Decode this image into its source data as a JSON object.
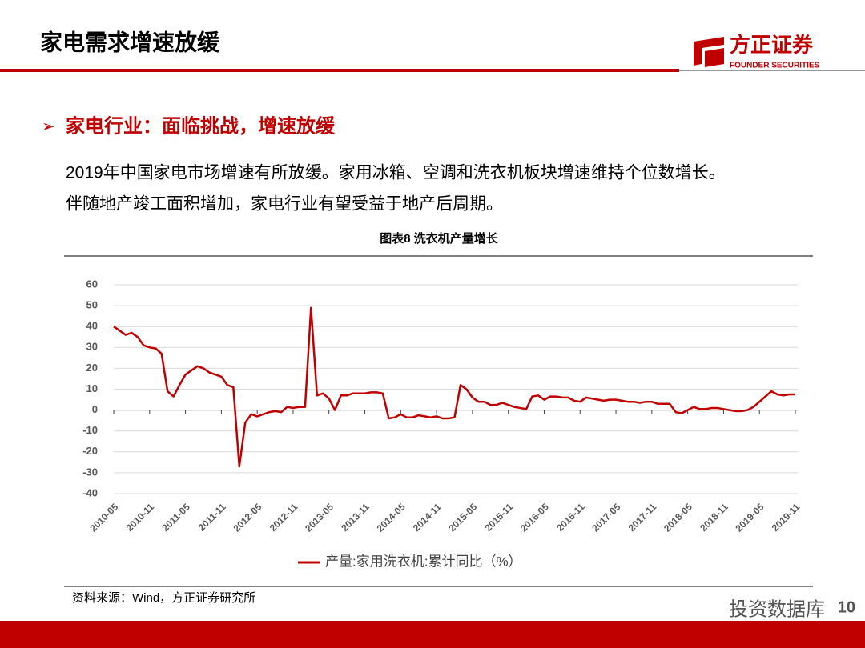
{
  "header": {
    "title": "家电需求增速放缓",
    "logo_name": "方正证券",
    "logo_sub": "FOUNDER SECURITIES"
  },
  "section": {
    "heading": "家电行业：面临挑战，增速放缓",
    "paragraph": [
      "2019年中国家电市场增速有所放缓。家用冰箱、空调和洗衣机板块增速维持个位数增长。",
      "伴随地产竣工面积增加，家电行业有望受益于地产后周期。"
    ]
  },
  "chart_data": {
    "type": "line",
    "title": "图表8 洗衣机产量增长",
    "categories": [
      "2010-05",
      null,
      null,
      null,
      null,
      null,
      "2010-11",
      null,
      null,
      null,
      null,
      null,
      "2011-05",
      null,
      null,
      null,
      null,
      null,
      "2011-11",
      null,
      null,
      null,
      null,
      null,
      "2012-05",
      null,
      null,
      null,
      null,
      null,
      "2012-11",
      null,
      null,
      null,
      null,
      null,
      "2013-05",
      null,
      null,
      null,
      null,
      null,
      "2013-11",
      null,
      null,
      null,
      null,
      null,
      "2014-05",
      null,
      null,
      null,
      null,
      null,
      "2014-11",
      null,
      null,
      null,
      null,
      null,
      "2015-05",
      null,
      null,
      null,
      null,
      null,
      "2015-11",
      null,
      null,
      null,
      null,
      null,
      "2016-05",
      null,
      null,
      null,
      null,
      null,
      "2016-11",
      null,
      null,
      null,
      null,
      null,
      "2017-05",
      null,
      null,
      null,
      null,
      null,
      "2017-11",
      null,
      null,
      null,
      null,
      null,
      "2018-05",
      null,
      null,
      null,
      null,
      null,
      "2018-11",
      null,
      null,
      null,
      null,
      null,
      "2019-05",
      null,
      null,
      null,
      null,
      null,
      "2019-11"
    ],
    "series": [
      {
        "name": "产量:家用洗衣机:累计同比（%）",
        "color": "#c00000",
        "values": [
          40,
          38,
          36,
          37,
          35,
          31,
          30,
          29.5,
          27,
          9,
          6.5,
          12,
          17,
          19,
          21,
          20,
          18,
          17,
          16,
          12,
          11,
          -27,
          -6,
          -2,
          -3,
          -2,
          -1,
          -0.5,
          -1,
          1.5,
          1,
          1.5,
          1.5,
          49,
          7,
          8,
          5.5,
          0,
          7,
          7,
          8,
          8,
          8,
          8.5,
          8.5,
          8,
          -4,
          -3.5,
          -2,
          -3.5,
          -3.5,
          -2.5,
          -3,
          -3.5,
          -3,
          -4,
          -4,
          -3.5,
          12,
          10,
          6,
          4,
          4,
          2.5,
          2.5,
          3.5,
          2.5,
          1.5,
          1,
          0.5,
          6.5,
          7,
          5,
          6.5,
          6.5,
          6,
          6,
          4.5,
          4,
          6,
          5.5,
          5,
          4.5,
          5,
          5,
          4.5,
          4,
          4,
          3.5,
          4,
          4,
          3,
          3,
          3,
          -1,
          -1.5,
          0,
          1.5,
          0.5,
          0.5,
          1,
          1,
          0.5,
          0,
          -0.5,
          -0.5,
          0,
          1.5,
          4,
          6.5,
          9,
          7.5,
          7,
          7.5,
          7.5
        ]
      }
    ],
    "ylim": [
      -40,
      60
    ],
    "yticks": [
      -40,
      -30,
      -20,
      -10,
      0,
      10,
      20,
      30,
      40,
      50,
      60
    ],
    "grid": true
  },
  "source": "资料来源：Wind，方正证券研究所",
  "watermark": "投资数据库",
  "page_number": "10"
}
